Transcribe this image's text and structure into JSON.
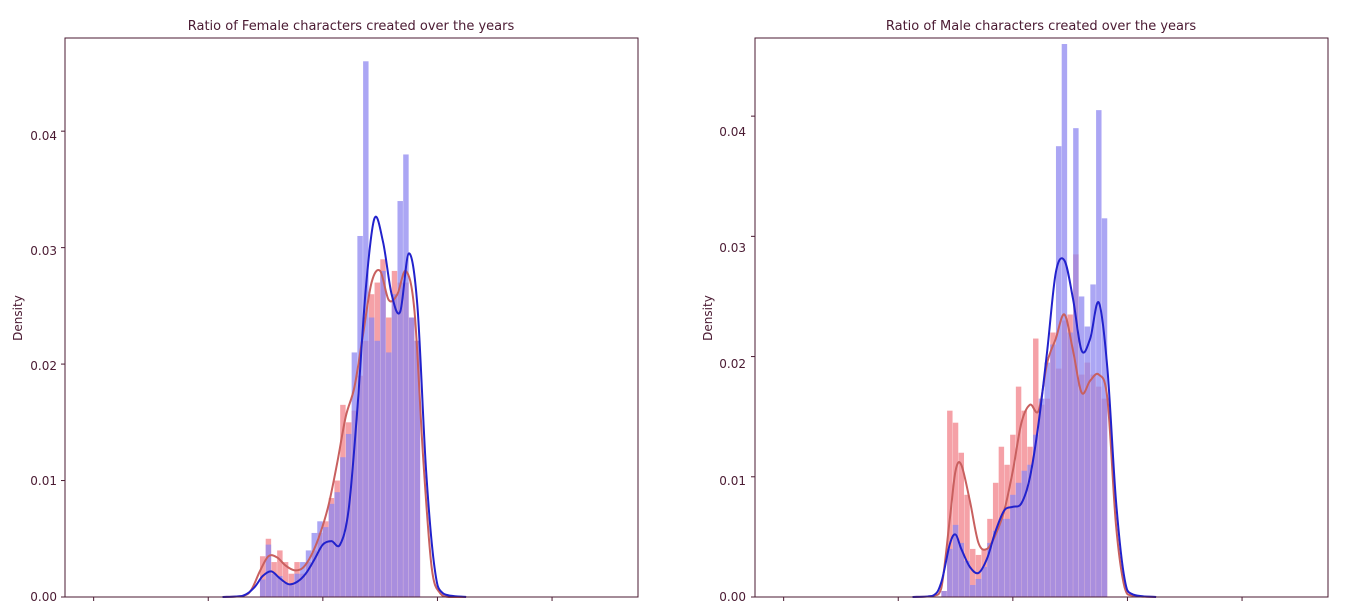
{
  "colors": {
    "female_hist": "#f2818a",
    "male_hist": "#8f88f0",
    "female_kde": "#c8605f",
    "male_kde": "#2222cc",
    "axis_text": "#4a1a32",
    "frame": "#4a1a32"
  },
  "chart_data": [
    {
      "type": "histogram",
      "title": "Ratio of Female characters created over the years",
      "xlabel": "",
      "ylabel": "Density",
      "ylim": [
        0,
        0.048
      ],
      "yticks": [
        "0.00",
        "0.01",
        "0.02",
        "0.03",
        "0.04"
      ],
      "ytick_values": [
        0,
        0.01,
        0.02,
        0.03,
        0.04
      ],
      "xlim": [
        1900,
        2100
      ],
      "xticks": [
        1910,
        1950,
        1990,
        2030,
        2070
      ],
      "xtick_labels": [],
      "grid": false,
      "bin_width": 1.9,
      "series": [
        {
          "kind": "hist",
          "x": [
            1969,
            1971,
            1973,
            1975,
            1977,
            1979,
            1981,
            1983,
            1985,
            1987,
            1989,
            1991,
            1993,
            1995,
            1997,
            1999,
            2001,
            2003,
            2005,
            2007,
            2009,
            2011,
            2013,
            2015,
            2017,
            2019,
            2021,
            2023
          ],
          "values": [
            0.0035,
            0.005,
            0.003,
            0.004,
            0.003,
            0.002,
            0.003,
            0.002,
            0.003,
            0.004,
            0.0055,
            0.0065,
            0.0085,
            0.01,
            0.0165,
            0.015,
            0.016,
            0.019,
            0.022,
            0.026,
            0.027,
            0.029,
            0.024,
            0.028,
            0.027,
            0.027,
            0.024,
            0.022
          ]
        },
        {
          "kind": "hist",
          "x": [
            1969,
            1971,
            1973,
            1975,
            1977,
            1979,
            1981,
            1983,
            1985,
            1987,
            1989,
            1991,
            1993,
            1995,
            1997,
            1999,
            2001,
            2003,
            2005,
            2007,
            2009,
            2011,
            2013,
            2015,
            2017,
            2019,
            2021,
            2023
          ],
          "values": [
            0.0015,
            0.0045,
            0.002,
            0.0018,
            0.0012,
            0.001,
            0.002,
            0.003,
            0.004,
            0.0055,
            0.0065,
            0.006,
            0.008,
            0.009,
            0.012,
            0.014,
            0.021,
            0.031,
            0.046,
            0.024,
            0.022,
            0.028,
            0.021,
            0.026,
            0.034,
            0.038,
            0.024,
            0.022
          ]
        },
        {
          "kind": "kde",
          "x": [
            1955,
            1962,
            1965,
            1968,
            1971,
            1974,
            1977,
            1980,
            1983,
            1986,
            1989,
            1992,
            1995,
            1998,
            2001,
            2004,
            2007,
            2010,
            2013,
            2016,
            2019,
            2022,
            2025,
            2028,
            2031,
            2034,
            2040
          ],
          "values": [
            0,
            0.0001,
            0.0006,
            0.0022,
            0.0035,
            0.0034,
            0.0027,
            0.0023,
            0.0025,
            0.0036,
            0.0054,
            0.0079,
            0.0115,
            0.0155,
            0.018,
            0.0225,
            0.027,
            0.028,
            0.0255,
            0.026,
            0.028,
            0.0245,
            0.012,
            0.0025,
            0.0003,
            0,
            0
          ]
        },
        {
          "kind": "kde",
          "x": [
            1955,
            1962,
            1966,
            1969,
            1972,
            1975,
            1978,
            1981,
            1984,
            1987,
            1990,
            1993,
            1996,
            1999,
            2002,
            2005,
            2008,
            2011,
            2014,
            2017,
            2020,
            2023,
            2026,
            2029,
            2032,
            2040
          ],
          "values": [
            0,
            0.0001,
            0.0008,
            0.0018,
            0.0022,
            0.0016,
            0.0011,
            0.0013,
            0.002,
            0.0032,
            0.0045,
            0.0048,
            0.0045,
            0.0075,
            0.016,
            0.0265,
            0.0325,
            0.0305,
            0.026,
            0.0245,
            0.0295,
            0.025,
            0.011,
            0.0025,
            0.0003,
            0
          ]
        }
      ]
    },
    {
      "type": "histogram",
      "title": "Ratio of Male characters created over the years",
      "xlabel": "",
      "ylabel": "Density",
      "ylim": [
        0,
        0.0465
      ],
      "yticks": [
        "0.00",
        "0.01",
        "0.02",
        "0.03",
        "0.04"
      ],
      "ytick_values": [
        0,
        0.01,
        0.02,
        0.03,
        0.04
      ],
      "xlim": [
        1900,
        2100
      ],
      "xticks": [
        1910,
        1950,
        1990,
        2030,
        2070
      ],
      "xtick_labels": [],
      "grid": false,
      "bin_width": 1.9,
      "series": [
        {
          "kind": "hist",
          "x": [
            1966,
            1968,
            1970,
            1972,
            1974,
            1976,
            1978,
            1980,
            1982,
            1984,
            1986,
            1988,
            1990,
            1992,
            1994,
            1996,
            1998,
            2000,
            2002,
            2004,
            2006,
            2008,
            2010,
            2012,
            2014,
            2016,
            2018,
            2020,
            2022
          ],
          "values": [
            0.0005,
            0.0155,
            0.0145,
            0.012,
            0.0085,
            0.004,
            0.0035,
            0.004,
            0.0065,
            0.0095,
            0.0125,
            0.011,
            0.0135,
            0.0175,
            0.0155,
            0.0125,
            0.0215,
            0.016,
            0.0165,
            0.022,
            0.019,
            0.023,
            0.0235,
            0.0285,
            0.0185,
            0.0195,
            0.0185,
            0.0175,
            0.0165
          ]
        },
        {
          "kind": "hist",
          "x": [
            1966,
            1968,
            1970,
            1972,
            1974,
            1976,
            1978,
            1980,
            1982,
            1984,
            1986,
            1988,
            1990,
            1992,
            1994,
            1996,
            1998,
            2000,
            2002,
            2004,
            2006,
            2008,
            2010,
            2012,
            2014,
            2016,
            2018,
            2020,
            2022
          ],
          "values": [
            0.0005,
            0.004,
            0.006,
            0.0045,
            0.003,
            0.001,
            0.0015,
            0.0025,
            0.0045,
            0.0055,
            0.0065,
            0.0065,
            0.0085,
            0.0095,
            0.0105,
            0.011,
            0.0135,
            0.0165,
            0.0195,
            0.021,
            0.0375,
            0.046,
            0.022,
            0.039,
            0.025,
            0.0225,
            0.026,
            0.0405,
            0.0315
          ]
        },
        {
          "kind": "kde",
          "x": [
            1955,
            1962,
            1965,
            1968,
            1970,
            1972,
            1975,
            1978,
            1981,
            1984,
            1987,
            1990,
            1993,
            1996,
            1999,
            2002,
            2005,
            2008,
            2011,
            2014,
            2017,
            2020,
            2023,
            2026,
            2029,
            2032,
            2040
          ],
          "values": [
            0,
            0.0001,
            0.0007,
            0.0065,
            0.0105,
            0.011,
            0.008,
            0.0045,
            0.004,
            0.0052,
            0.0072,
            0.0105,
            0.0145,
            0.016,
            0.0155,
            0.0195,
            0.0215,
            0.0235,
            0.0205,
            0.017,
            0.018,
            0.0185,
            0.0165,
            0.006,
            0.0008,
            0.0001,
            0
          ]
        },
        {
          "kind": "kde",
          "x": [
            1955,
            1962,
            1965,
            1968,
            1970,
            1972,
            1975,
            1978,
            1981,
            1984,
            1987,
            1990,
            1993,
            1996,
            1999,
            2002,
            2005,
            2008,
            2011,
            2014,
            2017,
            2020,
            2023,
            2026,
            2029,
            2032,
            2040
          ],
          "values": [
            0,
            0.0001,
            0.0012,
            0.0044,
            0.0052,
            0.004,
            0.0025,
            0.002,
            0.0032,
            0.0055,
            0.0072,
            0.0075,
            0.0078,
            0.01,
            0.0145,
            0.0205,
            0.027,
            0.028,
            0.0248,
            0.0205,
            0.0215,
            0.0245,
            0.019,
            0.008,
            0.0015,
            0.0002,
            0
          ]
        }
      ]
    }
  ]
}
